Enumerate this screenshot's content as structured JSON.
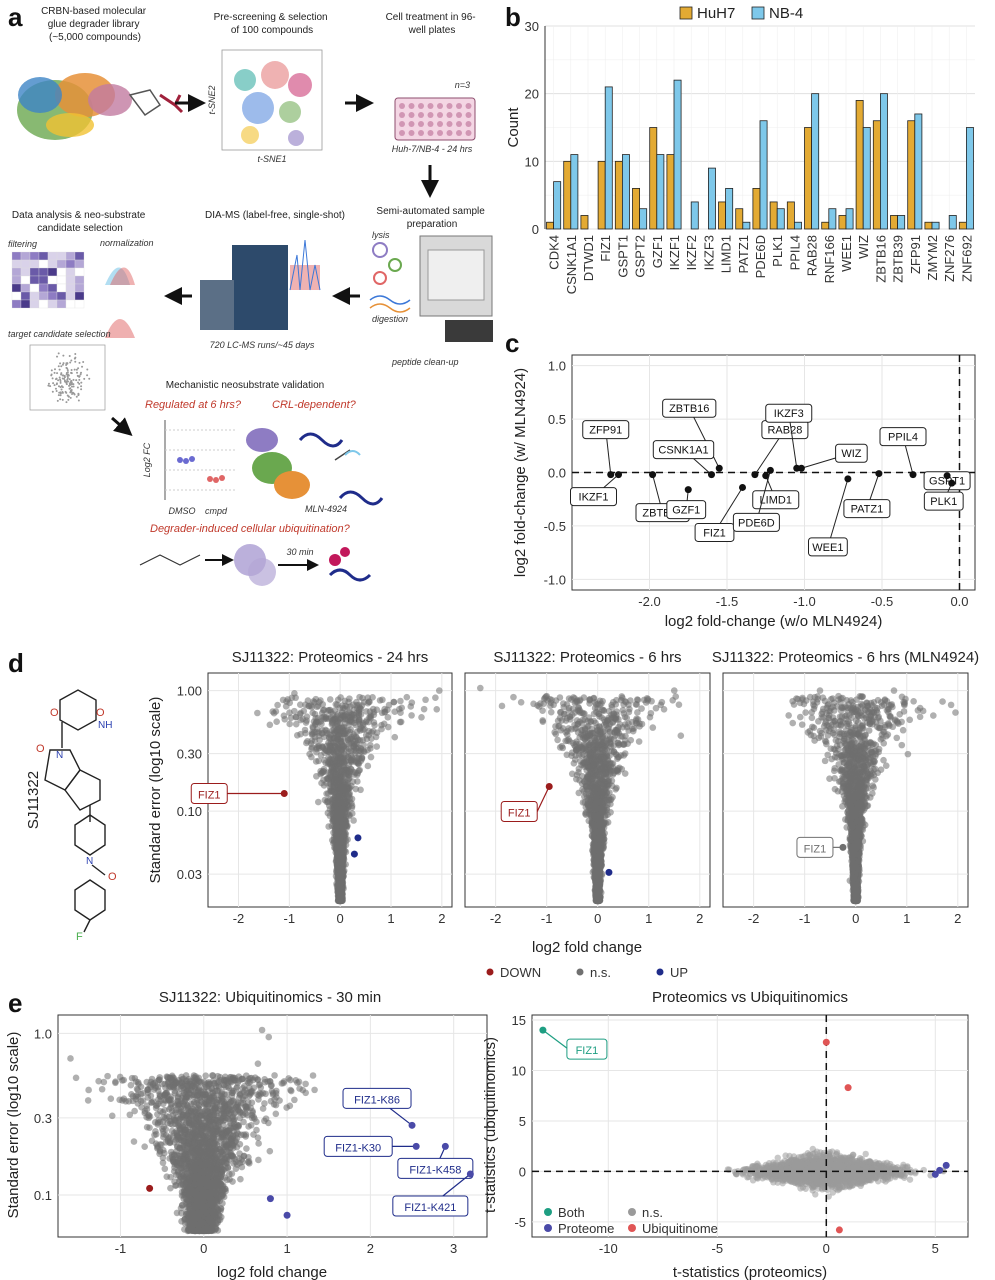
{
  "panel_letters": {
    "a": "a",
    "b": "b",
    "c": "c",
    "d": "d",
    "e": "e"
  },
  "schematic": {
    "step1": [
      "CRBN-based molecular",
      "glue degrader library",
      "(~5,000 compounds)"
    ],
    "step2": [
      "Pre-screening & selection",
      "of 100 compounds"
    ],
    "step3": [
      "Cell treatment in 96-",
      "well plates"
    ],
    "step3_sub": "Huh-7/NB-4 - 24 hrs",
    "step3_n": "n=3",
    "step4": [
      "Semi-automated sample",
      "preparation"
    ],
    "step4_labels": [
      "lysis",
      "digestion",
      "peptide clean-up"
    ],
    "step5": "DIA-MS (label-free, single-shot)",
    "step5_sub": "720 LC-MS runs/~45 days",
    "step6": [
      "Data analysis & neo-substrate",
      "candidate selection"
    ],
    "step6_labels": [
      "filtering",
      "normalization",
      "target candidate selection"
    ],
    "mech_title": "Mechanistic neosubstrate validation",
    "q1": "Regulated at 6 hrs?",
    "q2": "CRL-dependent?",
    "q3": "Degrader-induced cellular ubiquitination?",
    "mini_ylabel": "Log2 FC",
    "mini_x": [
      "DMSO",
      "cmpd"
    ],
    "mln_label": "MLN-4924",
    "time_label": "30 min",
    "tsne_x": "t-SNE1",
    "tsne_y": "t-SNE2"
  },
  "compound_label": "SJ11322",
  "legend_d": {
    "down": "DOWN",
    "ns": "n.s.",
    "up": "UP"
  },
  "legend_e": {
    "both": "Both",
    "proteome": "Proteome",
    "ns": "n.s.",
    "ubiq": "Ubiquitinome"
  },
  "colors": {
    "huh7": "#e3aa33",
    "nb4": "#7ec8ea",
    "down": "#9b1c1c",
    "up": "#1f2c8a",
    "ns": "#707070",
    "both": "#1e9e82",
    "proteome": "#4a4aa8",
    "ubiq": "#e05555"
  },
  "chart_data": [
    {
      "id": "b",
      "type": "bar",
      "categories": [
        "CDK4",
        "CSNK1A1",
        "DTWD1",
        "FIZ1",
        "GSPT1",
        "GSPT2",
        "GZF1",
        "IKZF1",
        "IKZF2",
        "IKZF3",
        "LIMD1",
        "PATZ1",
        "PDE6D",
        "PLK1",
        "PPIL4",
        "RAB28",
        "RNF166",
        "WEE1",
        "WIZ",
        "ZBTB16",
        "ZBTB39",
        "ZFP91",
        "ZMYM2",
        "ZNF276",
        "ZNF692"
      ],
      "series": [
        {
          "name": "HuH7",
          "values": [
            1,
            10,
            2,
            10,
            10,
            6,
            15,
            11,
            0,
            0,
            4,
            3,
            6,
            4,
            4,
            15,
            1,
            2,
            19,
            16,
            2,
            16,
            1,
            0,
            1
          ]
        },
        {
          "name": "NB-4",
          "values": [
            7,
            11,
            0,
            21,
            11,
            3,
            11,
            22,
            4,
            9,
            6,
            1,
            16,
            3,
            1,
            20,
            3,
            3,
            15,
            20,
            2,
            17,
            1,
            2,
            15
          ]
        }
      ],
      "ylabel": "Count",
      "ylim": [
        0,
        30
      ],
      "yticks": [
        0,
        10,
        20,
        30
      ],
      "legend": "top"
    },
    {
      "id": "c",
      "type": "scatter",
      "xlabel": "log2 fold-change (w/o MLN4924)",
      "ylabel": "log2 fold-change (w/ MLN4924)",
      "xlim": [
        -2.5,
        0.1
      ],
      "ylim": [
        -1.1,
        1.1
      ],
      "xticks": [
        -2.0,
        -1.5,
        -1.0,
        -0.5,
        0.0
      ],
      "xtick_labels": [
        "-2.0",
        "-1.5",
        "-1.0",
        "-0.5",
        "0.0"
      ],
      "yticks": [
        -1.0,
        -0.5,
        0.0,
        0.5,
        1.0
      ],
      "ytick_labels": [
        "-1.0",
        "-0.5",
        "0.0",
        "0.5",
        "1.0"
      ],
      "points": [
        {
          "label": "ZFP91",
          "x": -2.25,
          "y": -0.02
        },
        {
          "label": "IKZF1",
          "x": -2.2,
          "y": -0.02
        },
        {
          "label": "ZBTB39",
          "x": -1.98,
          "y": -0.02
        },
        {
          "label": "ZBTB16",
          "x": -1.55,
          "y": 0.04
        },
        {
          "label": "CSNK1A1",
          "x": -1.6,
          "y": -0.02
        },
        {
          "label": "GZF1",
          "x": -1.75,
          "y": -0.16
        },
        {
          "label": "RAB28",
          "x": -1.32,
          "y": -0.02
        },
        {
          "label": "FIZ1",
          "x": -1.4,
          "y": -0.14
        },
        {
          "label": "LIMD1",
          "x": -1.25,
          "y": -0.03
        },
        {
          "label": "PDE6D",
          "x": -1.22,
          "y": 0.02
        },
        {
          "label": "IKZF3",
          "x": -1.05,
          "y": 0.04
        },
        {
          "label": "WIZ",
          "x": -1.02,
          "y": 0.04
        },
        {
          "label": "WEE1",
          "x": -0.72,
          "y": -0.06
        },
        {
          "label": "PATZ1",
          "x": -0.52,
          "y": -0.01
        },
        {
          "label": "PPIL4",
          "x": -0.3,
          "y": -0.02
        },
        {
          "label": "GSPT1",
          "x": -0.08,
          "y": -0.03
        },
        {
          "label": "PLK1",
          "x": -0.05,
          "y": -0.1
        }
      ]
    },
    {
      "id": "d1",
      "type": "scatter",
      "title": "SJ11322: Proteomics - 24 hrs",
      "ylabel": "Standard error (log10 scale)",
      "xlim": [
        -2.6,
        2.2
      ],
      "ylim": [
        0.016,
        1.4
      ],
      "yscale": "log10",
      "xticks": [
        -2,
        -1,
        0,
        1,
        2
      ],
      "yticks": [
        0.03,
        0.1,
        0.3,
        1.0
      ],
      "ytick_labels": [
        "0.03",
        "0.10",
        "0.30",
        "1.00"
      ],
      "highlighted": [
        {
          "label": "FIZ1",
          "x": -1.1,
          "y": 0.14,
          "class": "DOWN"
        },
        {
          "label": "",
          "x": 0.35,
          "y": 0.06,
          "class": "UP"
        },
        {
          "label": "",
          "x": 0.28,
          "y": 0.044,
          "class": "UP"
        }
      ]
    },
    {
      "id": "d2",
      "type": "scatter",
      "title": "SJ11322: Proteomics - 6 hrs",
      "xlim": [
        -2.6,
        2.2
      ],
      "ylim": [
        0.016,
        1.4
      ],
      "yscale": "log10",
      "xticks": [
        -2,
        -1,
        0,
        1,
        2
      ],
      "highlighted": [
        {
          "label": "FIZ1",
          "x": -0.95,
          "y": 0.16,
          "class": "DOWN"
        },
        {
          "label": "",
          "x": 0.22,
          "y": 0.031,
          "class": "UP"
        }
      ],
      "xlabel": "log2 fold change"
    },
    {
      "id": "d3",
      "type": "scatter",
      "title": "SJ11322: Proteomics - 6 hrs (MLN4924)",
      "xlim": [
        -2.6,
        2.2
      ],
      "ylim": [
        0.016,
        1.4
      ],
      "yscale": "log10",
      "xticks": [
        -2,
        -1,
        0,
        1,
        2
      ],
      "highlighted": [
        {
          "label": "FIZ1",
          "x": -0.25,
          "y": 0.05,
          "class": "n.s."
        }
      ]
    },
    {
      "id": "e1",
      "type": "scatter",
      "title": "SJ11322: Ubiquitinomics - 30 min",
      "xlabel": "log2 fold change",
      "ylabel": "Standard error (log10 scale)",
      "xlim": [
        -1.75,
        3.4
      ],
      "ylim": [
        0.055,
        1.3
      ],
      "yscale": "log10",
      "xticks": [
        -1,
        0,
        1,
        2,
        3
      ],
      "yticks": [
        0.1,
        0.3,
        1.0
      ],
      "ytick_labels": [
        "0.1",
        "0.3",
        "1.0"
      ],
      "highlighted": [
        {
          "label": "FIZ1-K86",
          "x": 2.5,
          "y": 0.27
        },
        {
          "label": "FIZ1-K30",
          "x": 2.55,
          "y": 0.2
        },
        {
          "label": "FIZ1-K458",
          "x": 2.9,
          "y": 0.2
        },
        {
          "label": "FIZ1-K421",
          "x": 3.2,
          "y": 0.135
        },
        {
          "label": "",
          "x": 0.8,
          "y": 0.095
        },
        {
          "label": "",
          "x": 1.0,
          "y": 0.075
        },
        {
          "label": "",
          "x": -0.65,
          "y": 0.11,
          "class": "DOWN"
        }
      ]
    },
    {
      "id": "e2",
      "type": "scatter",
      "title": "Proteomics vs Ubiquitinomics",
      "xlabel": "t-statistics (proteomics)",
      "ylabel": "t-statistics (ubiquitinomics)",
      "xlim": [
        -13.5,
        6.5
      ],
      "ylim": [
        -6.5,
        15.5
      ],
      "xticks": [
        -10,
        -5,
        0,
        5
      ],
      "yticks": [
        -5,
        0,
        5,
        10,
        15
      ],
      "highlighted": [
        {
          "label": "FIZ1",
          "x": -13,
          "y": 14,
          "class": "Both"
        },
        {
          "label": "",
          "x": 0.0,
          "y": 12.8,
          "class": "Ubiquitinome"
        },
        {
          "label": "",
          "x": 1.0,
          "y": 8.3,
          "class": "Ubiquitinome"
        },
        {
          "label": "",
          "x": 0.6,
          "y": -5.8,
          "class": "Ubiquitinome"
        },
        {
          "label": "",
          "x": 5.2,
          "y": 0.1,
          "class": "Proteome"
        },
        {
          "label": "",
          "x": 5.5,
          "y": 0.6,
          "class": "Proteome"
        },
        {
          "label": "",
          "x": 5.0,
          "y": -0.3,
          "class": "Proteome"
        }
      ]
    }
  ]
}
